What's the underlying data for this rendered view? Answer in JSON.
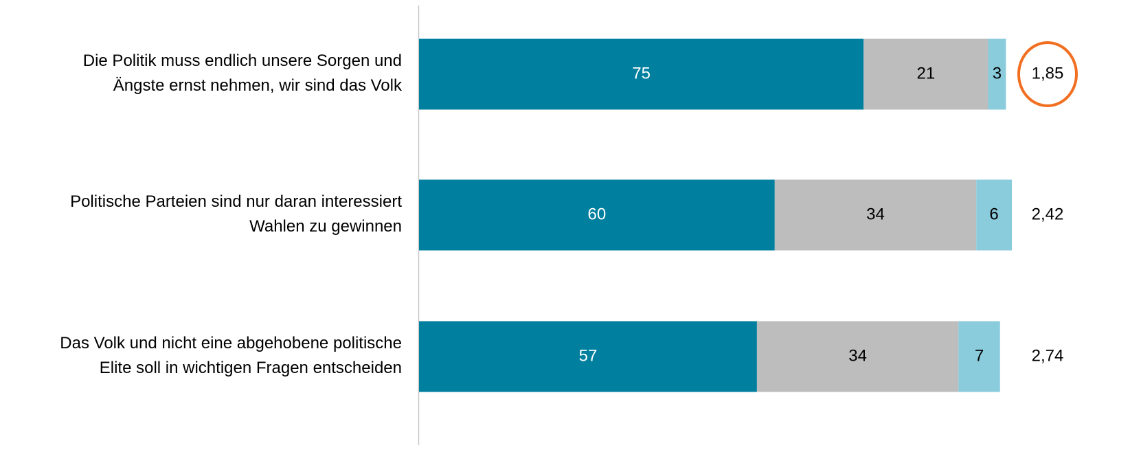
{
  "chart_data": {
    "type": "stacked-bar-horizontal",
    "categories": [
      "Die Politik muss endlich unsere Sorgen und\nÄngste ernst nehmen, wir sind das Volk",
      "Politische Parteien sind nur daran interessiert\nWahlen zu gewinnen",
      "Das Volk und nicht eine abgehobene politische\nElite soll in wichtigen Fragen entscheiden"
    ],
    "series": [
      {
        "color": "#007f9f",
        "label_color": "#ffffff",
        "values": [
          75,
          60,
          57
        ]
      },
      {
        "color": "#bdbdbd",
        "label_color": "#000000",
        "values": [
          21,
          34,
          34
        ]
      },
      {
        "color": "#8acbdc",
        "label_color": "#000000",
        "values": [
          3,
          6,
          7
        ]
      }
    ],
    "means": {
      "values": [
        1.85,
        2.42,
        2.74
      ],
      "value_labels": [
        "1,85",
        "2,42",
        "2,74"
      ],
      "highlight": [
        true,
        false,
        false
      ],
      "highlight_color": "#f26f21"
    },
    "xlim": [
      0,
      100
    ]
  }
}
